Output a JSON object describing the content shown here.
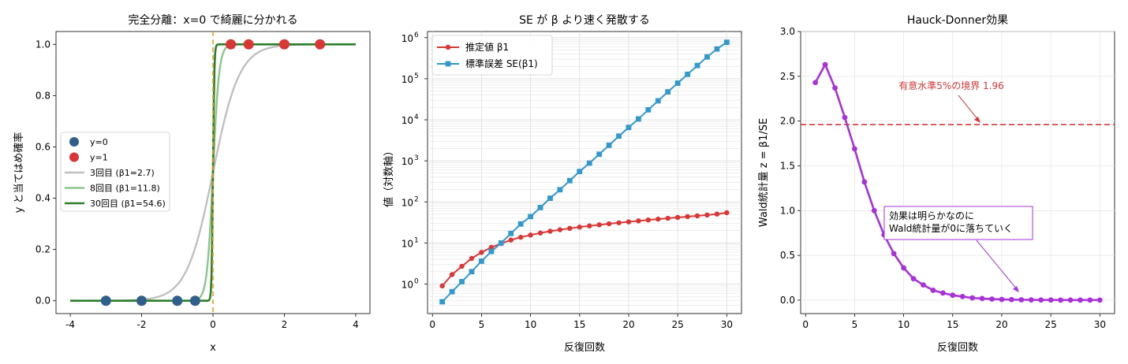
{
  "chart_data": [
    {
      "type": "line",
      "title": "完全分離：x=0 で綺麗に分かれる",
      "xlabel": "x",
      "ylabel": "y と当てはめ確率",
      "xlim": [
        -4.4,
        4.4
      ],
      "ylim": [
        -0.05,
        1.05
      ],
      "xticks": [
        -4,
        -2,
        0,
        2,
        4
      ],
      "xtick_labels": [
        "-4",
        "-2",
        "0",
        "2",
        "4"
      ],
      "yticks": [
        0.0,
        0.2,
        0.4,
        0.6,
        0.8,
        1.0
      ],
      "ytick_labels": [
        "0.0",
        "0.2",
        "0.4",
        "0.6",
        "0.8",
        "1.0"
      ],
      "legend_position": "center-left",
      "points_y0": {
        "name": "y=0",
        "color": "#2f5f8a",
        "x": [
          -3,
          -2,
          -1,
          -0.5
        ],
        "y": [
          0,
          0,
          0,
          0
        ]
      },
      "points_y1": {
        "name": "y=1",
        "color": "#d93636",
        "x": [
          0.5,
          1,
          2,
          3
        ],
        "y": [
          1,
          1,
          1,
          1
        ]
      },
      "series": [
        {
          "name": "3回目 (β1=2.7)",
          "beta": 2.7,
          "color": "#c0c0c0"
        },
        {
          "name": "8回目 (β1=11.8)",
          "beta": 11.8,
          "color": "#8cc48c"
        },
        {
          "name": "30回目 (β1=54.6)",
          "beta": 54.6,
          "color": "#2a7f2a"
        }
      ],
      "curve_x_range": [
        -4,
        4
      ],
      "vline": {
        "x": 0,
        "color": "#f0a020"
      }
    },
    {
      "type": "line",
      "title": "SE が β より速く発散する",
      "xlabel": "反復回数",
      "ylabel": "値（対数軸）",
      "yscale": "log",
      "xlim": [
        -0.5,
        31.5
      ],
      "ylim_log10": [
        -0.72,
        6.15
      ],
      "xticks": [
        0,
        5,
        10,
        15,
        20,
        25,
        30
      ],
      "xtick_labels": [
        "0",
        "5",
        "10",
        "15",
        "20",
        "25",
        "30"
      ],
      "yticks_log10": [
        0,
        1,
        2,
        3,
        4,
        5,
        6
      ],
      "ytick_labels": [
        "10",
        "10",
        "10",
        "10",
        "10",
        "10",
        "10"
      ],
      "ytick_exponents": [
        "0",
        "1",
        "2",
        "3",
        "4",
        "5",
        "6"
      ],
      "legend_position": "top-left",
      "x": [
        1,
        2,
        3,
        4,
        5,
        6,
        7,
        8,
        9,
        10,
        11,
        12,
        13,
        14,
        15,
        16,
        17,
        18,
        19,
        20,
        21,
        22,
        23,
        24,
        25,
        26,
        27,
        28,
        29,
        30
      ],
      "series": [
        {
          "name": "推定値 β1",
          "color": "#d93636",
          "marker": "circle",
          "values": [
            0.9,
            1.7,
            2.7,
            4.2,
            5.9,
            7.8,
            9.7,
            11.8,
            13.8,
            15.6,
            17.5,
            19.3,
            21.0,
            22.7,
            24.4,
            26.0,
            27.7,
            29.3,
            31.0,
            32.7,
            34.5,
            36.3,
            38.1,
            39.9,
            41.8,
            43.8,
            45.8,
            48.0,
            50.5,
            54.6
          ]
        },
        {
          "name": "標準誤差 SE(β1)",
          "color": "#3399cc",
          "marker": "square",
          "values": [
            0.37,
            0.65,
            1.14,
            2.0,
            3.6,
            6.2,
            10,
            17,
            29,
            44,
            73,
            123,
            198,
            330,
            550,
            880,
            1450,
            2400,
            4000,
            6500,
            10500,
            17500,
            29000,
            48000,
            78000,
            128000,
            210000,
            340000,
            530000,
            770000
          ]
        }
      ]
    },
    {
      "type": "line",
      "title": "Hauck-Donner効果",
      "xlabel": "反復回数",
      "ylabel": "Wald統計量 z = β1/SE",
      "xlim": [
        -0.5,
        31.5
      ],
      "ylim": [
        -0.15,
        3.0
      ],
      "xticks": [
        0,
        5,
        10,
        15,
        20,
        25,
        30
      ],
      "xtick_labels": [
        "0",
        "5",
        "10",
        "15",
        "20",
        "25",
        "30"
      ],
      "yticks": [
        0.0,
        0.5,
        1.0,
        1.5,
        2.0,
        2.5,
        3.0
      ],
      "ytick_labels": [
        "0.0",
        "0.5",
        "1.0",
        "1.5",
        "2.0",
        "2.5",
        "3.0"
      ],
      "x": [
        1,
        2,
        3,
        4,
        5,
        6,
        7,
        8,
        9,
        10,
        11,
        12,
        13,
        14,
        15,
        16,
        17,
        18,
        19,
        20,
        21,
        22,
        23,
        24,
        25,
        26,
        27,
        28,
        29,
        30
      ],
      "series": [
        {
          "color": "#a832d8",
          "values": [
            2.43,
            2.63,
            2.37,
            2.04,
            1.69,
            1.32,
            1.0,
            0.73,
            0.52,
            0.36,
            0.24,
            0.17,
            0.11,
            0.08,
            0.055,
            0.04,
            0.025,
            0.018,
            0.012,
            0.008,
            0.006,
            0.004,
            0.003,
            0.002,
            0.002,
            0.001,
            0.001,
            0.001,
            0.001,
            0.001
          ]
        }
      ],
      "hline": {
        "y": 1.96,
        "color": "#d93636"
      },
      "annotations": [
        {
          "text": "有意水準5%の境界 1.96",
          "color": "#d93636"
        },
        {
          "lines": [
            "効果は明らかなのに",
            "Wald統計量が0に落ちていく"
          ],
          "color": "#a832d8"
        }
      ]
    }
  ]
}
